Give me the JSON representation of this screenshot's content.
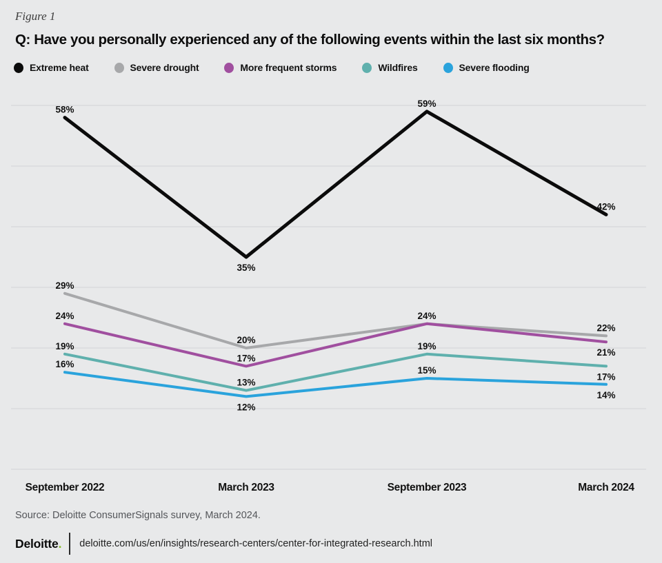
{
  "figure_label": "Figure 1",
  "title": "Q: Have you personally experienced any of the following events within the last six months?",
  "legend": [
    {
      "label": "Extreme heat",
      "color": "#0b0b0b",
      "icon": "dot"
    },
    {
      "label": "Severe drought",
      "color": "#a7a8aa",
      "icon": "dot"
    },
    {
      "label": "More frequent storms",
      "color": "#a04f9f",
      "icon": "dot"
    },
    {
      "label": "Wildfires",
      "color": "#5fb0ad",
      "icon": "dot"
    },
    {
      "label": "Severe flooding",
      "color": "#2aa3dc",
      "icon": "dot"
    }
  ],
  "chart_data": {
    "type": "line",
    "title": "Q: Have you personally experienced any of the following events within the last six months?",
    "categories": [
      "September 2022",
      "March 2023",
      "September 2023",
      "March 2024"
    ],
    "series": [
      {
        "name": "Extreme heat",
        "color": "#0b0b0b",
        "values": [
          58,
          35,
          59,
          42
        ],
        "labels": [
          "58%",
          "35%",
          "59%",
          "42%"
        ],
        "label_pos": [
          "above",
          "below",
          "above",
          "above"
        ]
      },
      {
        "name": "Severe drought",
        "color": "#a7a8aa",
        "values": [
          29,
          20,
          24,
          22
        ],
        "labels": [
          "29%",
          "20%",
          "24%",
          "22%"
        ],
        "label_pos": [
          "above",
          "above",
          "above",
          "above"
        ]
      },
      {
        "name": "More frequent storms",
        "color": "#a04f9f",
        "values": [
          24,
          17,
          24,
          21
        ],
        "labels": [
          "24%",
          "17%",
          null,
          "21%"
        ],
        "label_pos": [
          "above",
          "above",
          null,
          "below"
        ]
      },
      {
        "name": "Wildfires",
        "color": "#5fb0ad",
        "values": [
          19,
          13,
          19,
          17
        ],
        "labels": [
          "19%",
          "13%",
          "19%",
          "17%"
        ],
        "label_pos": [
          "above",
          "above",
          "above",
          "below"
        ]
      },
      {
        "name": "Severe flooding",
        "color": "#2aa3dc",
        "values": [
          16,
          12,
          15,
          14
        ],
        "labels": [
          "16%",
          "12%",
          "15%",
          "14%"
        ],
        "label_pos": [
          "above",
          "below",
          "above",
          "below"
        ]
      }
    ],
    "xlabel": "",
    "ylabel": "",
    "ylim": [
      0,
      60
    ],
    "y_gridline_step": 10,
    "grid": true,
    "y_tick_labels_shown": false,
    "legend_position": "top"
  },
  "source": "Source: Deloitte ConsumerSignals survey, March 2024.",
  "footer": {
    "logo_text": "Deloitte",
    "logo_dot": ".",
    "brand_green": "#86bc25",
    "url": "deloitte.com/us/en/insights/research-centers/center-for-integrated-research.html"
  },
  "colors": {
    "background": "#e8e9ea",
    "gridline": "#d9dbdc",
    "text": "#111111",
    "source_text": "#54565a"
  }
}
